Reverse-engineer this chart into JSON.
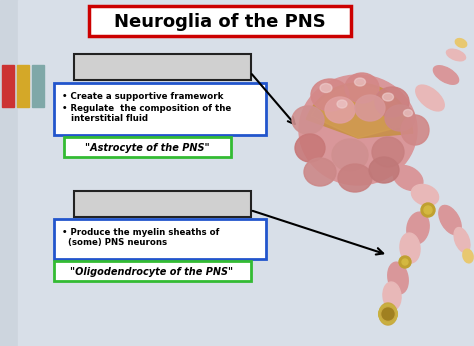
{
  "title": "Neuroglia of the PNS",
  "title_fontsize": 13,
  "title_box_color": "#cc0000",
  "bg_color": "#cdd5de",
  "sidebar_colors": [
    "#cc3333",
    "#d4a828",
    "#7fa8a8"
  ],
  "box1_label": "\"Astrocyte of the PNS\"",
  "box2_label": "\"Oligodendrocyte of the PNS\"",
  "box1_bullets": [
    "Create a supportive framework",
    "Regulate  the composition of the\n   interstitial fluid"
  ],
  "box2_bullets": [
    "Produce the myelin sheaths of\n  (some) PNS neurons"
  ],
  "green_box_color": "#33bb33",
  "blue_box_color": "#2255cc",
  "cell_pink": "#d9979a",
  "cell_pink_light": "#e8b8b8",
  "cell_pink_dark": "#c07878",
  "cell_brown": "#c8904a",
  "cell_gold": "#c0a030",
  "cell_highlight": "#f0d0d0"
}
